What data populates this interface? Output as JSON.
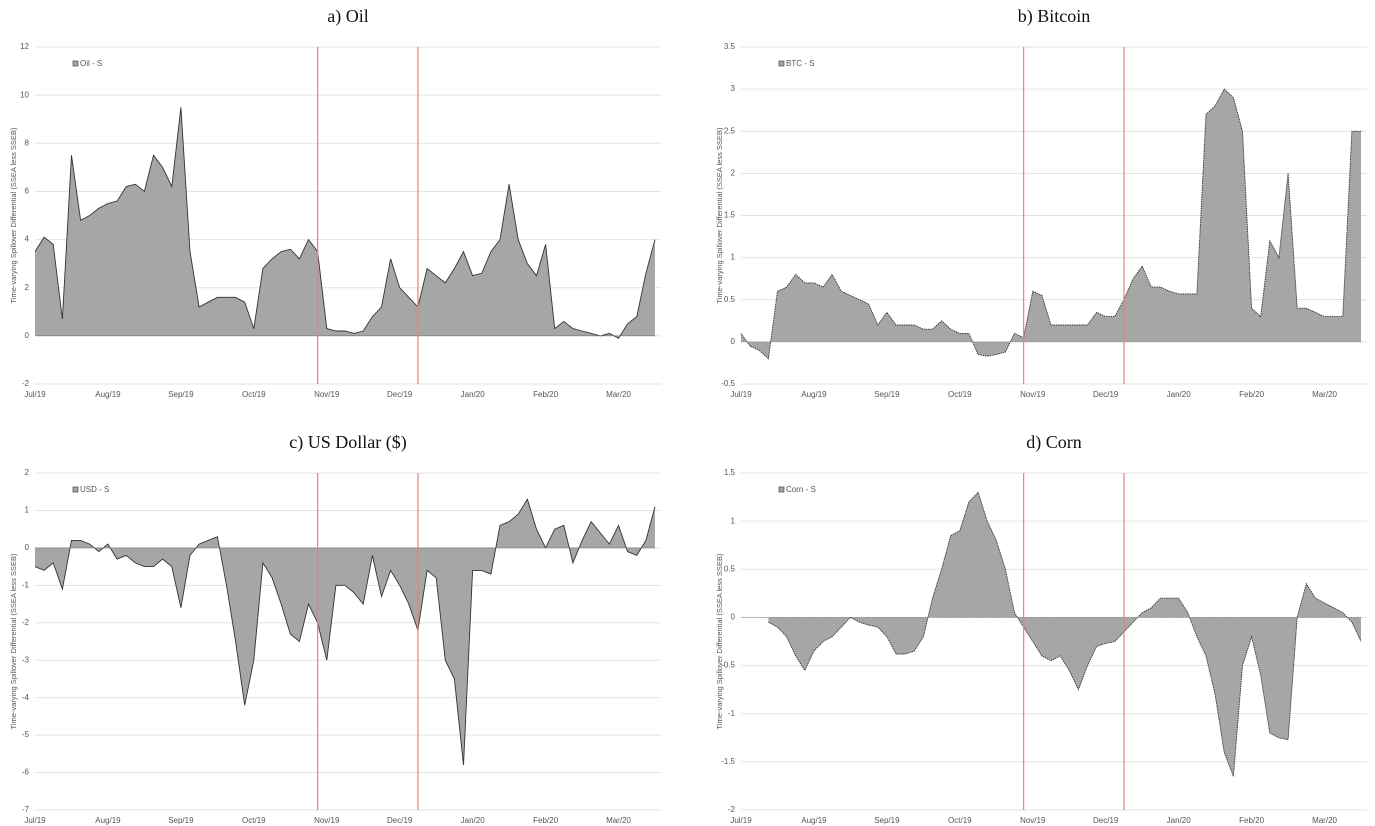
{
  "chart_data": [
    {
      "type": "area",
      "title": "a) Oil",
      "ylabel": "Time-varying Spillover Differential (SSEA less SSEB)",
      "categories": [
        "Jul/19",
        null,
        null,
        null,
        null,
        null,
        null,
        null,
        "Aug/19",
        null,
        null,
        null,
        null,
        null,
        null,
        null,
        "Sep/19",
        null,
        null,
        null,
        null,
        null,
        null,
        null,
        "Oct/19",
        null,
        null,
        null,
        null,
        null,
        null,
        null,
        "Nov/19",
        null,
        null,
        null,
        null,
        null,
        null,
        null,
        "Dec/19",
        null,
        null,
        null,
        null,
        null,
        null,
        null,
        "Jan/20",
        null,
        null,
        null,
        null,
        null,
        null,
        null,
        "Feb/20",
        null,
        null,
        null,
        null,
        null,
        null,
        null,
        "Mar/20",
        null,
        null,
        null,
        null
      ],
      "series": [
        {
          "name": "Oil - S",
          "color": "#a6a6a6",
          "values": [
            3.5,
            4.1,
            3.8,
            0.7,
            7.5,
            4.8,
            5.0,
            5.3,
            5.5,
            5.6,
            6.2,
            6.3,
            6.0,
            7.5,
            7.0,
            6.2,
            9.5,
            3.5,
            1.2,
            1.4,
            1.6,
            1.6,
            1.6,
            1.4,
            0.3,
            2.8,
            3.2,
            3.5,
            3.6,
            3.2,
            4.0,
            3.5,
            0.3,
            0.2,
            0.2,
            0.1,
            0.2,
            0.8,
            1.2,
            3.2,
            2.0,
            1.6,
            1.2,
            2.8,
            2.5,
            2.2,
            2.8,
            3.5,
            2.5,
            2.6,
            3.5,
            4.0,
            6.3,
            4.0,
            3.0,
            2.5,
            3.8,
            0.3,
            0.6,
            0.3,
            0.2,
            0.1,
            0.0,
            0.1,
            -0.1,
            0.5,
            0.8,
            2.6,
            4.0
          ]
        }
      ],
      "ylim": [
        -2,
        12
      ],
      "yticks": [
        -2,
        0,
        2,
        4,
        6,
        8,
        10,
        12
      ],
      "grid": true,
      "vlines": [
        31,
        42
      ],
      "vline_color": "#f07c7c",
      "outline": "#333333",
      "legend": "upper left"
    },
    {
      "type": "area",
      "title": "b) Bitcoin",
      "ylabel": "Time-varying Spillover Differential (SSEA less SSEB)",
      "categories": [
        "Jul/19",
        null,
        null,
        null,
        null,
        null,
        null,
        null,
        "Aug/19",
        null,
        null,
        null,
        null,
        null,
        null,
        null,
        "Sep/19",
        null,
        null,
        null,
        null,
        null,
        null,
        null,
        "Oct/19",
        null,
        null,
        null,
        null,
        null,
        null,
        null,
        "Nov/19",
        null,
        null,
        null,
        null,
        null,
        null,
        null,
        "Dec/19",
        null,
        null,
        null,
        null,
        null,
        null,
        null,
        "Jan/20",
        null,
        null,
        null,
        null,
        null,
        null,
        null,
        "Feb/20",
        null,
        null,
        null,
        null,
        null,
        null,
        null,
        "Mar/20",
        null,
        null,
        null,
        null
      ],
      "series": [
        {
          "name": "BTC - S",
          "color": "#a6a6a6",
          "values": [
            0.1,
            -0.05,
            -0.1,
            -0.2,
            0.6,
            0.65,
            0.8,
            0.7,
            0.7,
            0.65,
            0.8,
            0.6,
            0.55,
            0.5,
            0.45,
            0.2,
            0.35,
            0.2,
            0.2,
            0.2,
            0.15,
            0.15,
            0.25,
            0.15,
            0.1,
            0.1,
            -0.15,
            -0.17,
            -0.15,
            -0.12,
            0.1,
            0.05,
            0.6,
            0.55,
            0.2,
            0.2,
            0.2,
            0.2,
            0.2,
            0.35,
            0.3,
            0.3,
            0.5,
            0.75,
            0.9,
            0.65,
            0.65,
            0.6,
            0.57,
            0.57,
            0.57,
            2.7,
            2.8,
            3.0,
            2.9,
            2.5,
            0.4,
            0.3,
            1.2,
            1.0,
            2.0,
            0.4,
            0.4,
            0.35,
            0.3,
            0.3,
            0.3,
            2.5,
            2.5
          ]
        }
      ],
      "ylim": [
        -0.5,
        3.5
      ],
      "yticks": [
        -0.5,
        0,
        0.5,
        1,
        1.5,
        2,
        2.5,
        3,
        3.5
      ],
      "grid": true,
      "vlines": [
        31,
        42
      ],
      "vline_color": "#f07c7c",
      "outline": "#333333",
      "legend": "upper left"
    },
    {
      "type": "area",
      "title": "c) US Dollar ($)",
      "ylabel": "Time-varying Spillover Differential (SSEA less SSEB)",
      "categories": [
        "Jul/19",
        null,
        null,
        null,
        null,
        null,
        null,
        null,
        "Aug/19",
        null,
        null,
        null,
        null,
        null,
        null,
        null,
        "Sep/19",
        null,
        null,
        null,
        null,
        null,
        null,
        null,
        "Oct/19",
        null,
        null,
        null,
        null,
        null,
        null,
        null,
        "Nov/19",
        null,
        null,
        null,
        null,
        null,
        null,
        null,
        "Dec/19",
        null,
        null,
        null,
        null,
        null,
        null,
        null,
        "Jan/20",
        null,
        null,
        null,
        null,
        null,
        null,
        null,
        "Feb/20",
        null,
        null,
        null,
        null,
        null,
        null,
        null,
        "Mar/20",
        null,
        null,
        null,
        null
      ],
      "series": [
        {
          "name": "USD - S",
          "color": "#a6a6a6",
          "values": [
            -0.5,
            -0.6,
            -0.4,
            -1.1,
            0.2,
            0.2,
            0.1,
            -0.1,
            0.1,
            -0.3,
            -0.2,
            -0.4,
            -0.5,
            -0.5,
            -0.3,
            -0.5,
            -1.6,
            -0.2,
            0.1,
            0.2,
            0.3,
            -1.0,
            -2.5,
            -4.2,
            -3.0,
            -0.4,
            -0.8,
            -1.5,
            -2.3,
            -2.5,
            -1.5,
            -2.0,
            -3.0,
            -1.0,
            -1.0,
            -1.2,
            -1.5,
            -0.2,
            -1.3,
            -0.6,
            -1.0,
            -1.5,
            -2.2,
            -0.6,
            -0.8,
            -3.0,
            -3.5,
            -5.8,
            -0.6,
            -0.6,
            -0.7,
            0.6,
            0.7,
            0.9,
            1.3,
            0.5,
            0.0,
            0.5,
            0.6,
            -0.4,
            0.2,
            0.7,
            0.4,
            0.1,
            0.6,
            -0.1,
            -0.2,
            0.2,
            1.1
          ]
        }
      ],
      "ylim": [
        -7,
        2
      ],
      "yticks": [
        -7,
        -6,
        -5,
        -4,
        -3,
        -2,
        -1,
        0,
        1,
        2
      ],
      "grid": true,
      "vlines": [
        31,
        42
      ],
      "vline_color": "#f07c7c",
      "outline": "#333333",
      "legend": "upper left"
    },
    {
      "type": "area",
      "title": "d) Corn",
      "ylabel": "Time-varying Spillover Differential (SSEA less SSEB)",
      "categories": [
        "Jul/19",
        null,
        null,
        null,
        null,
        null,
        null,
        null,
        "Aug/19",
        null,
        null,
        null,
        null,
        null,
        null,
        null,
        "Sep/19",
        null,
        null,
        null,
        null,
        null,
        null,
        null,
        "Oct/19",
        null,
        null,
        null,
        null,
        null,
        null,
        null,
        "Nov/19",
        null,
        null,
        null,
        null,
        null,
        null,
        null,
        "Dec/19",
        null,
        null,
        null,
        null,
        null,
        null,
        null,
        "Jan/20",
        null,
        null,
        null,
        null,
        null,
        null,
        null,
        "Feb/20",
        null,
        null,
        null,
        null,
        null,
        null,
        null,
        "Mar/20",
        null,
        null,
        null,
        null
      ],
      "series": [
        {
          "name": "Corn - S",
          "color": "#a6a6a6",
          "values": [
            null,
            null,
            null,
            -0.05,
            -0.1,
            -0.2,
            -0.4,
            -0.55,
            -0.35,
            -0.25,
            -0.2,
            -0.1,
            0.0,
            -0.05,
            -0.08,
            -0.1,
            -0.2,
            -0.38,
            -0.38,
            -0.35,
            -0.2,
            0.2,
            0.5,
            0.85,
            0.9,
            1.2,
            1.3,
            1.0,
            0.8,
            0.5,
            0.05,
            -0.1,
            -0.25,
            -0.4,
            -0.45,
            -0.4,
            -0.55,
            -0.75,
            -0.5,
            -0.3,
            -0.27,
            -0.25,
            -0.15,
            -0.05,
            0.05,
            0.1,
            0.2,
            0.2,
            0.2,
            0.05,
            -0.2,
            -0.4,
            -0.8,
            -1.4,
            -1.65,
            -0.5,
            -0.2,
            -0.6,
            -1.2,
            -1.25,
            -1.27,
            0.0,
            0.35,
            0.2,
            0.15,
            0.1,
            0.05,
            -0.05,
            -0.25
          ]
        }
      ],
      "ylim": [
        -2,
        1.5
      ],
      "yticks": [
        -2,
        -1.5,
        -1,
        -0.5,
        0,
        0.5,
        1,
        1.5
      ],
      "grid": true,
      "vlines": [
        31,
        42
      ],
      "vline_color": "#f07c7c",
      "outline": "#333333",
      "legend": "upper left"
    }
  ]
}
